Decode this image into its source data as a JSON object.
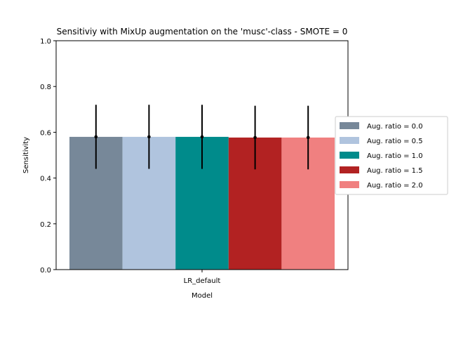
{
  "chart_data": {
    "type": "bar",
    "title": "Sensitiviy with MixUp augmentation on the 'musc'-class - SMOTE = 0",
    "xlabel": "Model",
    "ylabel": "Sensitivity",
    "categories": [
      "LR_default"
    ],
    "ylim": [
      0,
      1.0
    ],
    "yticks": [
      "0.0",
      "0.2",
      "0.4",
      "0.6",
      "0.8",
      "1.0"
    ],
    "series": [
      {
        "name": "Aug. ratio = 0.0",
        "color": "#778899",
        "values": [
          0.58
        ],
        "error": [
          0.14
        ]
      },
      {
        "name": "Aug. ratio = 0.5",
        "color": "#B0C4DE",
        "values": [
          0.58
        ],
        "error": [
          0.14
        ]
      },
      {
        "name": "Aug. ratio = 1.0",
        "color": "#008B8B",
        "values": [
          0.58
        ],
        "error": [
          0.14
        ]
      },
      {
        "name": "Aug. ratio = 1.5",
        "color": "#B22222",
        "values": [
          0.577
        ],
        "error": [
          0.139
        ]
      },
      {
        "name": "Aug. ratio = 2.0",
        "color": "#F08080",
        "values": [
          0.577
        ],
        "error": [
          0.139
        ]
      }
    ],
    "legend_position": "center-right",
    "grid": false
  }
}
